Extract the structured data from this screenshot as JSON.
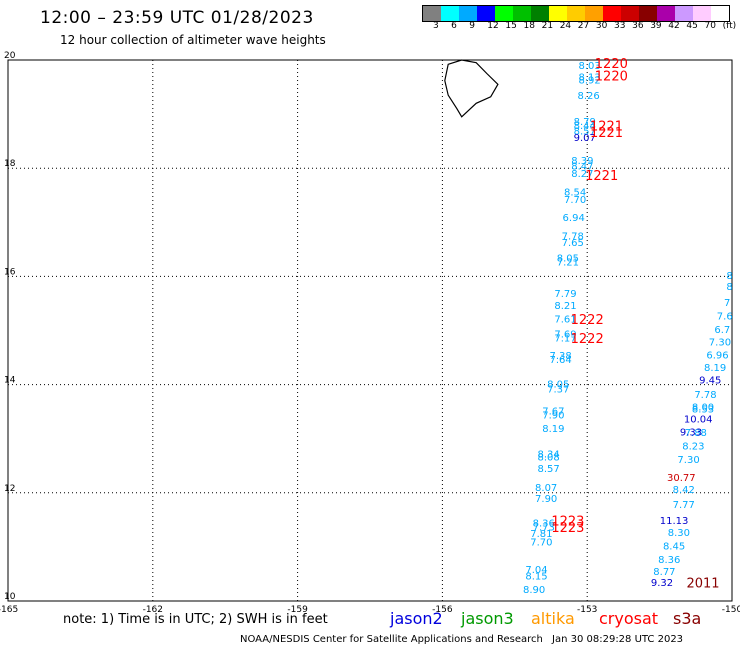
{
  "header": {
    "title": "12:00 – 23:59 UTC 01/28/2023",
    "subtitle": "12 hour collection of altimeter wave heights"
  },
  "legend": {
    "labels": [
      "3",
      "6",
      "9",
      "12",
      "15",
      "18",
      "21",
      "24",
      "27",
      "30",
      "33",
      "36",
      "39",
      "42",
      "45",
      "70",
      "(ft)"
    ],
    "colors": [
      "#808080",
      "#00ffff",
      "#00aaff",
      "#0000ff",
      "#00ff00",
      "#00c000",
      "#008000",
      "#ffff00",
      "#ffcc00",
      "#ffa000",
      "#ff0000",
      "#cc0000",
      "#880000",
      "#aa00aa",
      "#cc99ff",
      "#ffccff",
      "#ffffff"
    ]
  },
  "map": {
    "x_range": [
      -165,
      -150
    ],
    "y_range": [
      10,
      20
    ],
    "x_ticks": [
      "-165",
      "-162",
      "-159",
      "-156",
      "-153",
      "-150"
    ],
    "y_ticks": [
      "20",
      "18",
      "16",
      "14",
      "12",
      "10"
    ],
    "track_color_a": "#00aaff",
    "track_color_b": "#0000cc",
    "time_color": "#ff0000",
    "track_a": [
      {
        "lon": -152.95,
        "lat": 19.83,
        "v": "8.03"
      },
      {
        "lon": -152.95,
        "lat": 19.62,
        "v": "8.13"
      },
      {
        "lon": -152.95,
        "lat": 19.57,
        "v": "8.92"
      },
      {
        "lon": -152.97,
        "lat": 19.28,
        "v": "8.26"
      },
      {
        "lon": -153.05,
        "lat": 18.8,
        "v": "8.79"
      },
      {
        "lon": -153.05,
        "lat": 18.72,
        "v": "8.44"
      },
      {
        "lon": -153.05,
        "lat": 18.62,
        "v": "8.57"
      },
      {
        "lon": -153.1,
        "lat": 18.08,
        "v": "8.39"
      },
      {
        "lon": -153.1,
        "lat": 17.98,
        "v": "8.47"
      },
      {
        "lon": -153.1,
        "lat": 17.84,
        "v": "8.27"
      },
      {
        "lon": -153.25,
        "lat": 17.5,
        "v": "8.54"
      },
      {
        "lon": -153.25,
        "lat": 17.36,
        "v": "7.70"
      },
      {
        "lon": -153.28,
        "lat": 17.02,
        "v": "6.94"
      },
      {
        "lon": -153.3,
        "lat": 16.68,
        "v": "7.78"
      },
      {
        "lon": -153.3,
        "lat": 16.56,
        "v": "7.65"
      },
      {
        "lon": -153.4,
        "lat": 16.28,
        "v": "8.05"
      },
      {
        "lon": -153.4,
        "lat": 16.2,
        "v": "7.21"
      },
      {
        "lon": -153.45,
        "lat": 15.62,
        "v": "7.79"
      },
      {
        "lon": -153.45,
        "lat": 15.4,
        "v": "8.21"
      },
      {
        "lon": -153.45,
        "lat": 15.15,
        "v": "7.61"
      },
      {
        "lon": -153.45,
        "lat": 14.87,
        "v": "7.69"
      },
      {
        "lon": -153.45,
        "lat": 14.8,
        "v": "7.17"
      },
      {
        "lon": -153.55,
        "lat": 14.47,
        "v": "7.38"
      },
      {
        "lon": -153.55,
        "lat": 14.4,
        "v": "7.64"
      },
      {
        "lon": -153.6,
        "lat": 13.95,
        "v": "8.05"
      },
      {
        "lon": -153.6,
        "lat": 13.85,
        "v": "7.37"
      },
      {
        "lon": -153.7,
        "lat": 13.45,
        "v": "7.67"
      },
      {
        "lon": -153.7,
        "lat": 13.37,
        "v": "7.90"
      },
      {
        "lon": -153.7,
        "lat": 13.12,
        "v": "8.19"
      },
      {
        "lon": -153.8,
        "lat": 12.65,
        "v": "8.34"
      },
      {
        "lon": -153.8,
        "lat": 12.6,
        "v": "8.08"
      },
      {
        "lon": -153.8,
        "lat": 12.38,
        "v": "8.57"
      },
      {
        "lon": -153.85,
        "lat": 12.03,
        "v": "8.07"
      },
      {
        "lon": -153.85,
        "lat": 11.83,
        "v": "7.90"
      },
      {
        "lon": -153.9,
        "lat": 11.38,
        "v": "8.36"
      },
      {
        "lon": -153.9,
        "lat": 11.3,
        "v": "7.73"
      },
      {
        "lon": -153.95,
        "lat": 11.18,
        "v": "7.81"
      },
      {
        "lon": -153.95,
        "lat": 11.03,
        "v": "7.70"
      },
      {
        "lon": -154.05,
        "lat": 10.52,
        "v": "7.04"
      },
      {
        "lon": -154.05,
        "lat": 10.4,
        "v": "8.15"
      },
      {
        "lon": -154.1,
        "lat": 10.15,
        "v": "8.90"
      }
    ],
    "track_a_dark": [
      {
        "lon": -153.05,
        "lat": 18.5,
        "v": "9.07"
      }
    ],
    "track_b": [
      {
        "lon": -150.05,
        "lat": 15.95,
        "v": "8"
      },
      {
        "lon": -150.05,
        "lat": 15.75,
        "v": "8"
      },
      {
        "lon": -150.1,
        "lat": 15.45,
        "v": "7"
      },
      {
        "lon": -150.15,
        "lat": 15.2,
        "v": "7.6"
      },
      {
        "lon": -150.2,
        "lat": 14.95,
        "v": "6.7"
      },
      {
        "lon": -150.25,
        "lat": 14.72,
        "v": "7.30"
      },
      {
        "lon": -150.3,
        "lat": 14.48,
        "v": "6.96"
      },
      {
        "lon": -150.35,
        "lat": 14.25,
        "v": "8.19"
      },
      {
        "lon": -150.55,
        "lat": 13.75,
        "v": "7.78"
      },
      {
        "lon": -150.6,
        "lat": 13.52,
        "v": "8.00"
      },
      {
        "lon": -150.6,
        "lat": 13.48,
        "v": "8.53"
      },
      {
        "lon": -150.75,
        "lat": 13.05,
        "v": "7.88"
      },
      {
        "lon": -150.8,
        "lat": 12.8,
        "v": "8.23"
      },
      {
        "lon": -150.9,
        "lat": 12.55,
        "v": "7.30"
      },
      {
        "lon": -151.0,
        "lat": 12.0,
        "v": "8.42"
      },
      {
        "lon": -151.0,
        "lat": 11.72,
        "v": "7.77"
      },
      {
        "lon": -151.1,
        "lat": 11.2,
        "v": "8.30"
      },
      {
        "lon": -151.2,
        "lat": 10.95,
        "v": "8.45"
      },
      {
        "lon": -151.3,
        "lat": 10.7,
        "v": "8.36"
      },
      {
        "lon": -151.4,
        "lat": 10.48,
        "v": "8.77"
      }
    ],
    "track_b_dark": [
      {
        "lon": -150.45,
        "lat": 14.02,
        "v": "9.45"
      },
      {
        "lon": -150.7,
        "lat": 13.3,
        "v": "10.04"
      },
      {
        "lon": -150.85,
        "lat": 13.06,
        "v": "9.33"
      },
      {
        "lon": -151.2,
        "lat": 11.42,
        "v": "11.13"
      },
      {
        "lon": -151.45,
        "lat": 10.28,
        "v": "9.32"
      }
    ],
    "track_b_red": [
      {
        "lon": -151.05,
        "lat": 12.22,
        "v": "30.77"
      }
    ],
    "times": [
      {
        "lon": -152.5,
        "lat": 19.85,
        "v": "1220"
      },
      {
        "lon": -152.5,
        "lat": 19.62,
        "v": "1220"
      },
      {
        "lon": -152.6,
        "lat": 18.7,
        "v": "1221"
      },
      {
        "lon": -152.6,
        "lat": 18.58,
        "v": "1221"
      },
      {
        "lon": -152.7,
        "lat": 17.78,
        "v": "1221"
      },
      {
        "lon": -153.0,
        "lat": 15.12,
        "v": "1222"
      },
      {
        "lon": -153.0,
        "lat": 14.77,
        "v": "1222"
      },
      {
        "lon": -153.4,
        "lat": 11.4,
        "v": "1223"
      },
      {
        "lon": -153.4,
        "lat": 11.28,
        "v": "1223"
      }
    ],
    "time_dark": [
      {
        "lon": -150.6,
        "lat": 10.25,
        "v": "2011"
      }
    ]
  },
  "footer": {
    "note": "note:  1) Time is in UTC;  2) SWH is in feet",
    "satellites": [
      {
        "name": "jason2",
        "color": "#0000dd"
      },
      {
        "name": "jason3",
        "color": "#009900"
      },
      {
        "name": "altika",
        "color": "#ff9900"
      },
      {
        "name": "cryosat",
        "color": "#ff0000"
      },
      {
        "name": "s3a",
        "color": "#880000"
      }
    ],
    "credit": "NOAA/NESDIS Center for Satellite Applications and Research",
    "timestamp": "Jan 30 08:29:28 UTC 2023"
  }
}
